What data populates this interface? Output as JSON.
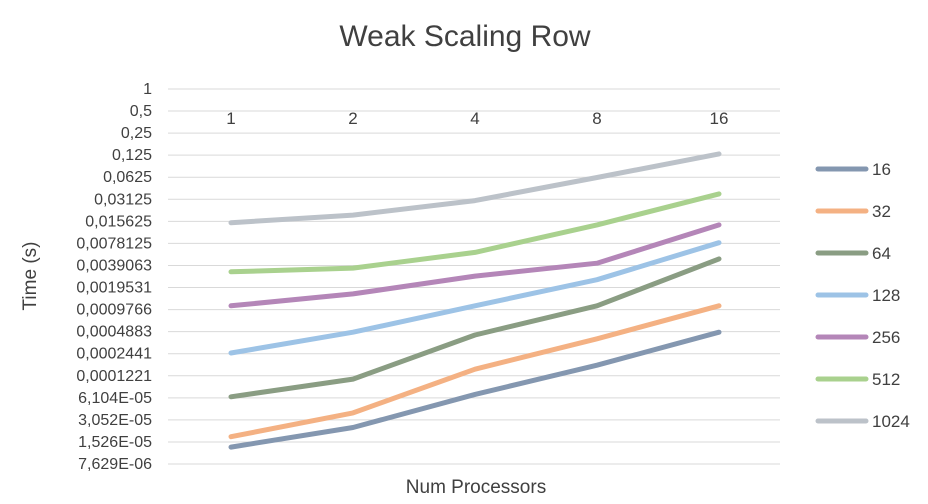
{
  "chart_data": {
    "type": "line",
    "title": "Weak Scaling  Row",
    "xlabel": "Num Processors",
    "ylabel": "Time (s)",
    "y_scale": "log2",
    "categories": [
      "1",
      "2",
      "4",
      "8",
      "16"
    ],
    "y_tick_labels": [
      "1",
      "0,5",
      "0,25",
      "0,125",
      "0,0625",
      "0,03125",
      "0,015625",
      "0,0078125",
      "0,0039063",
      "0,0019531",
      "0,0009766",
      "0,0004883",
      "0,0002441",
      "0,0001221",
      "6,104E-05",
      "3,052E-05",
      "1,526E-05",
      "7,629E-06"
    ],
    "grid": true,
    "legend_position": "right",
    "series": [
      {
        "name": "16",
        "color": "#8497b0",
        "values": [
          1.3e-05,
          2.4e-05,
          6.8e-05,
          0.00017,
          0.00048
        ]
      },
      {
        "name": "32",
        "color": "#f4b183",
        "values": [
          1.8e-05,
          3.8e-05,
          0.00015,
          0.00039,
          0.0011
        ]
      },
      {
        "name": "64",
        "color": "#8a9d83",
        "values": [
          6.3e-05,
          0.00011,
          0.00044,
          0.0011,
          0.0048
        ]
      },
      {
        "name": "128",
        "color": "#9dc3e6",
        "values": [
          0.00025,
          0.00048,
          0.0011,
          0.0025,
          0.008
        ]
      },
      {
        "name": "256",
        "color": "#b486b8",
        "values": [
          0.0011,
          0.0016,
          0.0028,
          0.0042,
          0.014
        ]
      },
      {
        "name": "512",
        "color": "#a9d18e",
        "values": [
          0.0032,
          0.0036,
          0.0059,
          0.014,
          0.037
        ]
      },
      {
        "name": "1024",
        "color": "#bcc2c9",
        "values": [
          0.015,
          0.019,
          0.03,
          0.062,
          0.13
        ]
      }
    ]
  }
}
